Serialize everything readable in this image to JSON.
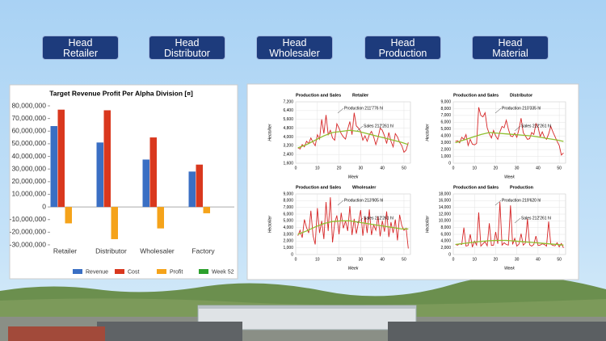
{
  "nav": [
    "Head\nRetailer",
    "Head\nDistributor",
    "Head\nWholesaler",
    "Head\nProduction",
    "Head\nMaterial"
  ],
  "chart_data": [
    {
      "type": "bar",
      "title": "Target Revenue Profit Per Alpha Division [¤]",
      "categories": [
        "Retailer",
        "Distributor",
        "Wholesaler",
        "Factory"
      ],
      "series": [
        {
          "name": "Revenue",
          "color": "#3a6fc4",
          "values": [
            64000000,
            51000000,
            37500000,
            28000000
          ]
        },
        {
          "name": "Cost",
          "color": "#d9381e",
          "values": [
            77000000,
            76500000,
            55000000,
            33500000
          ]
        },
        {
          "name": "Profit",
          "color": "#f5a31a",
          "values": [
            -13000000,
            -25500000,
            -17000000,
            -5000000
          ]
        },
        {
          "name": "Week 52",
          "color": "#2ca02c",
          "values": [
            0,
            0,
            0,
            0
          ]
        }
      ],
      "ylim": [
        -30000000,
        80000000
      ],
      "yticks": [
        {
          "value": 80000000,
          "label": "80,000,000"
        },
        {
          "value": 70000000,
          "label": "70,000,000"
        },
        {
          "value": 60000000,
          "label": "60,000,000"
        },
        {
          "value": 50000000,
          "label": "50,000,000"
        },
        {
          "value": 40000000,
          "label": "40,000,000"
        },
        {
          "value": 30000000,
          "label": "30,000,000"
        },
        {
          "value": 20000000,
          "label": "20,000,000"
        },
        {
          "value": 10000000,
          "label": "10,000,000"
        },
        0,
        {
          "value": -10000000,
          "label": "-10,000,000"
        },
        {
          "value": -20000000,
          "label": "-20,000,000"
        },
        {
          "value": -30000000,
          "label": "-30,000,000"
        }
      ],
      "legend": "bottom"
    },
    {
      "type": "line",
      "title": "Production and Sales",
      "subtitle": "Retailer",
      "x_label": "Week",
      "y_label": "Hectoliter",
      "xlim": [
        0,
        53
      ],
      "xticks": [
        0,
        10,
        20,
        30,
        40,
        50
      ],
      "ylim": [
        1600,
        7200
      ],
      "yticks": [
        {
          "value": 1600,
          "label": "1,600"
        },
        {
          "value": 2400,
          "label": "2,400"
        },
        {
          "value": 3200,
          "label": "3,200"
        },
        {
          "value": 4000,
          "label": "4,000"
        },
        {
          "value": 4800,
          "label": "4,800"
        },
        {
          "value": 5600,
          "label": "5,600"
        },
        {
          "value": 6400,
          "label": "6,400"
        },
        {
          "value": 7200,
          "label": "7,200"
        }
      ],
      "annotations": [
        "Production 211'776 hl",
        "Sales 212'261 hl"
      ],
      "grid": true,
      "series": [
        {
          "color": "#d62728",
          "x": [
            1,
            2,
            3,
            4,
            5,
            6,
            7,
            8,
            9,
            10,
            11,
            12,
            13,
            14,
            15,
            16,
            17,
            18,
            19,
            20,
            21,
            22,
            23,
            24,
            25,
            26,
            27,
            28,
            29,
            30,
            31,
            32,
            33,
            34,
            35,
            36,
            37,
            38,
            39,
            40,
            41,
            42,
            43,
            44,
            45,
            46,
            47,
            48,
            49,
            50,
            51,
            52
          ],
          "values": [
            3000,
            2900,
            3300,
            3100,
            3600,
            3400,
            3900,
            3500,
            3200,
            4200,
            3800,
            5600,
            4300,
            6000,
            4200,
            4600,
            3900,
            3700,
            5200,
            4800,
            4300,
            4000,
            3800,
            4700,
            5400,
            4200,
            6200,
            5000,
            4800,
            4500,
            3700,
            4100,
            3600,
            4200,
            4500,
            4000,
            3300,
            3900,
            4800,
            4600,
            4100,
            3400,
            4400,
            3600,
            3100,
            4300,
            4000,
            3500,
            3200,
            2600,
            2800,
            3500
          ]
        },
        {
          "color": "#8fbf2f",
          "x": [
            1,
            5,
            9,
            13,
            17,
            21,
            25,
            29,
            33,
            37,
            41,
            45,
            49,
            52
          ],
          "values": [
            3000,
            3300,
            3700,
            4100,
            4400,
            4500,
            4600,
            4500,
            4300,
            4100,
            3900,
            3700,
            3500,
            3300
          ]
        }
      ]
    },
    {
      "type": "line",
      "title": "Production and Sales",
      "subtitle": "Distributor",
      "x_label": "Week",
      "y_label": "Hectoliter",
      "xlim": [
        0,
        53
      ],
      "xticks": [
        0,
        10,
        20,
        30,
        40,
        50
      ],
      "ylim": [
        0,
        9000
      ],
      "yticks": [
        0,
        {
          "value": 1000,
          "label": "1,000"
        },
        {
          "value": 2000,
          "label": "2,000"
        },
        {
          "value": 3000,
          "label": "3,000"
        },
        {
          "value": 4000,
          "label": "4,000"
        },
        {
          "value": 5000,
          "label": "5,000"
        },
        {
          "value": 6000,
          "label": "6,000"
        },
        {
          "value": 7000,
          "label": "7,000"
        },
        {
          "value": 8000,
          "label": "8,000"
        },
        {
          "value": 9000,
          "label": "9,000"
        }
      ],
      "annotations": [
        "Production 210'335 hl",
        "Sales 212'261 hl"
      ],
      "grid": true,
      "series": [
        {
          "color": "#d62728",
          "x": [
            1,
            2,
            3,
            4,
            5,
            6,
            7,
            8,
            9,
            10,
            11,
            12,
            13,
            14,
            15,
            16,
            17,
            18,
            19,
            20,
            21,
            22,
            23,
            24,
            25,
            26,
            27,
            28,
            29,
            30,
            31,
            32,
            33,
            34,
            35,
            36,
            37,
            38,
            39,
            40,
            41,
            42,
            43,
            44,
            45,
            46,
            47,
            48,
            49,
            50,
            51,
            52
          ],
          "values": [
            3200,
            3300,
            3000,
            3800,
            3500,
            4200,
            2600,
            3500,
            2800,
            2700,
            2900,
            8200,
            7000,
            6800,
            7400,
            5200,
            4300,
            3700,
            4800,
            4000,
            3500,
            4600,
            5400,
            5200,
            6300,
            5000,
            4000,
            3900,
            4400,
            3800,
            5000,
            6600,
            4500,
            4000,
            3500,
            3600,
            4500,
            4200,
            5800,
            5300,
            3900,
            4600,
            3800,
            3500,
            4300,
            5400,
            4600,
            3900,
            3200,
            2600,
            1200,
            1500
          ]
        },
        {
          "color": "#8fbf2f",
          "x": [
            1,
            5,
            9,
            13,
            17,
            21,
            25,
            29,
            33,
            37,
            41,
            45,
            49,
            52
          ],
          "values": [
            3000,
            3400,
            3800,
            4200,
            4500,
            4400,
            4300,
            4200,
            4100,
            4000,
            3800,
            3600,
            3400,
            3200
          ]
        }
      ]
    },
    {
      "type": "line",
      "title": "Production and Sales",
      "subtitle": "Wholesaler",
      "x_label": "Week",
      "y_label": "Hectoliter",
      "xlim": [
        0,
        53
      ],
      "xticks": [
        0,
        10,
        20,
        30,
        40,
        50
      ],
      "ylim": [
        0,
        9000
      ],
      "yticks": [
        0,
        {
          "value": 1000,
          "label": "1,000"
        },
        {
          "value": 2000,
          "label": "2,000"
        },
        {
          "value": 3000,
          "label": "3,000"
        },
        {
          "value": 4000,
          "label": "4,000"
        },
        {
          "value": 5000,
          "label": "5,000"
        },
        {
          "value": 6000,
          "label": "6,000"
        },
        {
          "value": 7000,
          "label": "7,000"
        },
        {
          "value": 8000,
          "label": "8,000"
        },
        {
          "value": 9000,
          "label": "9,000"
        }
      ],
      "annotations": [
        "Production 213'905 hl",
        "Sales 212'261 hl"
      ],
      "grid": true,
      "series": [
        {
          "color": "#d62728",
          "x": [
            1,
            2,
            3,
            4,
            5,
            6,
            7,
            8,
            9,
            10,
            11,
            12,
            13,
            14,
            15,
            16,
            17,
            18,
            19,
            20,
            21,
            22,
            23,
            24,
            25,
            26,
            27,
            28,
            29,
            30,
            31,
            32,
            33,
            34,
            35,
            36,
            37,
            38,
            39,
            40,
            41,
            42,
            43,
            44,
            45,
            46,
            47,
            48,
            49,
            50,
            51,
            52
          ],
          "values": [
            2800,
            3600,
            2500,
            5200,
            4000,
            3200,
            6500,
            2800,
            1500,
            6900,
            3200,
            5000,
            2300,
            7800,
            3500,
            8500,
            1800,
            4700,
            5800,
            3000,
            6200,
            3900,
            5000,
            3500,
            7200,
            2900,
            5300,
            3100,
            4800,
            6600,
            2800,
            5600,
            3200,
            6700,
            2900,
            4400,
            3600,
            5700,
            2700,
            5000,
            3400,
            6400,
            2600,
            4800,
            3200,
            5200,
            2100,
            5900,
            4300,
            3600,
            3900,
            900
          ]
        },
        {
          "color": "#8fbf2f",
          "x": [
            1,
            5,
            9,
            13,
            17,
            21,
            25,
            29,
            33,
            37,
            41,
            45,
            49,
            52
          ],
          "values": [
            3000,
            3500,
            4100,
            4600,
            4900,
            5000,
            5000,
            4800,
            4600,
            4400,
            4200,
            4000,
            3800,
            3800
          ]
        }
      ]
    },
    {
      "type": "line",
      "title": "Production and Sales",
      "subtitle": "Production",
      "x_label": "Week",
      "y_label": "Hectoliter",
      "xlim": [
        0,
        53
      ],
      "xticks": [
        0,
        10,
        20,
        30,
        40,
        50
      ],
      "ylim": [
        0,
        18000
      ],
      "yticks": [
        0,
        {
          "value": 2000,
          "label": "2,000"
        },
        {
          "value": 4000,
          "label": "4,000"
        },
        {
          "value": 6000,
          "label": "6,000"
        },
        {
          "value": 8000,
          "label": "8,000"
        },
        {
          "value": 10000,
          "label": "10,000"
        },
        {
          "value": 12000,
          "label": "12,000"
        },
        {
          "value": 14000,
          "label": "14,000"
        },
        {
          "value": 16000,
          "label": "16,000"
        },
        {
          "value": 18000,
          "label": "18,000"
        }
      ],
      "annotations": [
        "Production 219'620 hl",
        "Sales 212'261 hl"
      ],
      "grid": true,
      "series": [
        {
          "color": "#d62728",
          "x": [
            1,
            2,
            3,
            4,
            5,
            6,
            7,
            8,
            9,
            10,
            11,
            12,
            13,
            14,
            15,
            16,
            17,
            18,
            19,
            20,
            21,
            22,
            23,
            24,
            25,
            26,
            27,
            28,
            29,
            30,
            31,
            32,
            33,
            34,
            35,
            36,
            37,
            38,
            39,
            40,
            41,
            42,
            43,
            44,
            45,
            46,
            47,
            48,
            49,
            50,
            51,
            52
          ],
          "values": [
            3000,
            2800,
            3200,
            3000,
            8000,
            2500,
            2700,
            6000,
            2200,
            4000,
            2800,
            12500,
            2500,
            3200,
            3800,
            2600,
            9300,
            2700,
            2800,
            6700,
            3200,
            15600,
            2800,
            3500,
            3000,
            2800,
            14600,
            3000,
            4800,
            2500,
            3100,
            6200,
            2800,
            3400,
            10600,
            2900,
            2500,
            3000,
            5500,
            2700,
            2800,
            3200,
            3000,
            2500,
            9800,
            3100,
            2700,
            2600,
            3500,
            2300,
            3300,
            2000
          ]
        },
        {
          "color": "#8fbf2f",
          "x": [
            1,
            5,
            9,
            13,
            17,
            21,
            25,
            29,
            33,
            37,
            41,
            45,
            49,
            52
          ],
          "values": [
            3000,
            3300,
            3600,
            3900,
            4100,
            4200,
            4200,
            4000,
            3800,
            3600,
            3400,
            3200,
            3000,
            2800
          ]
        }
      ]
    }
  ]
}
